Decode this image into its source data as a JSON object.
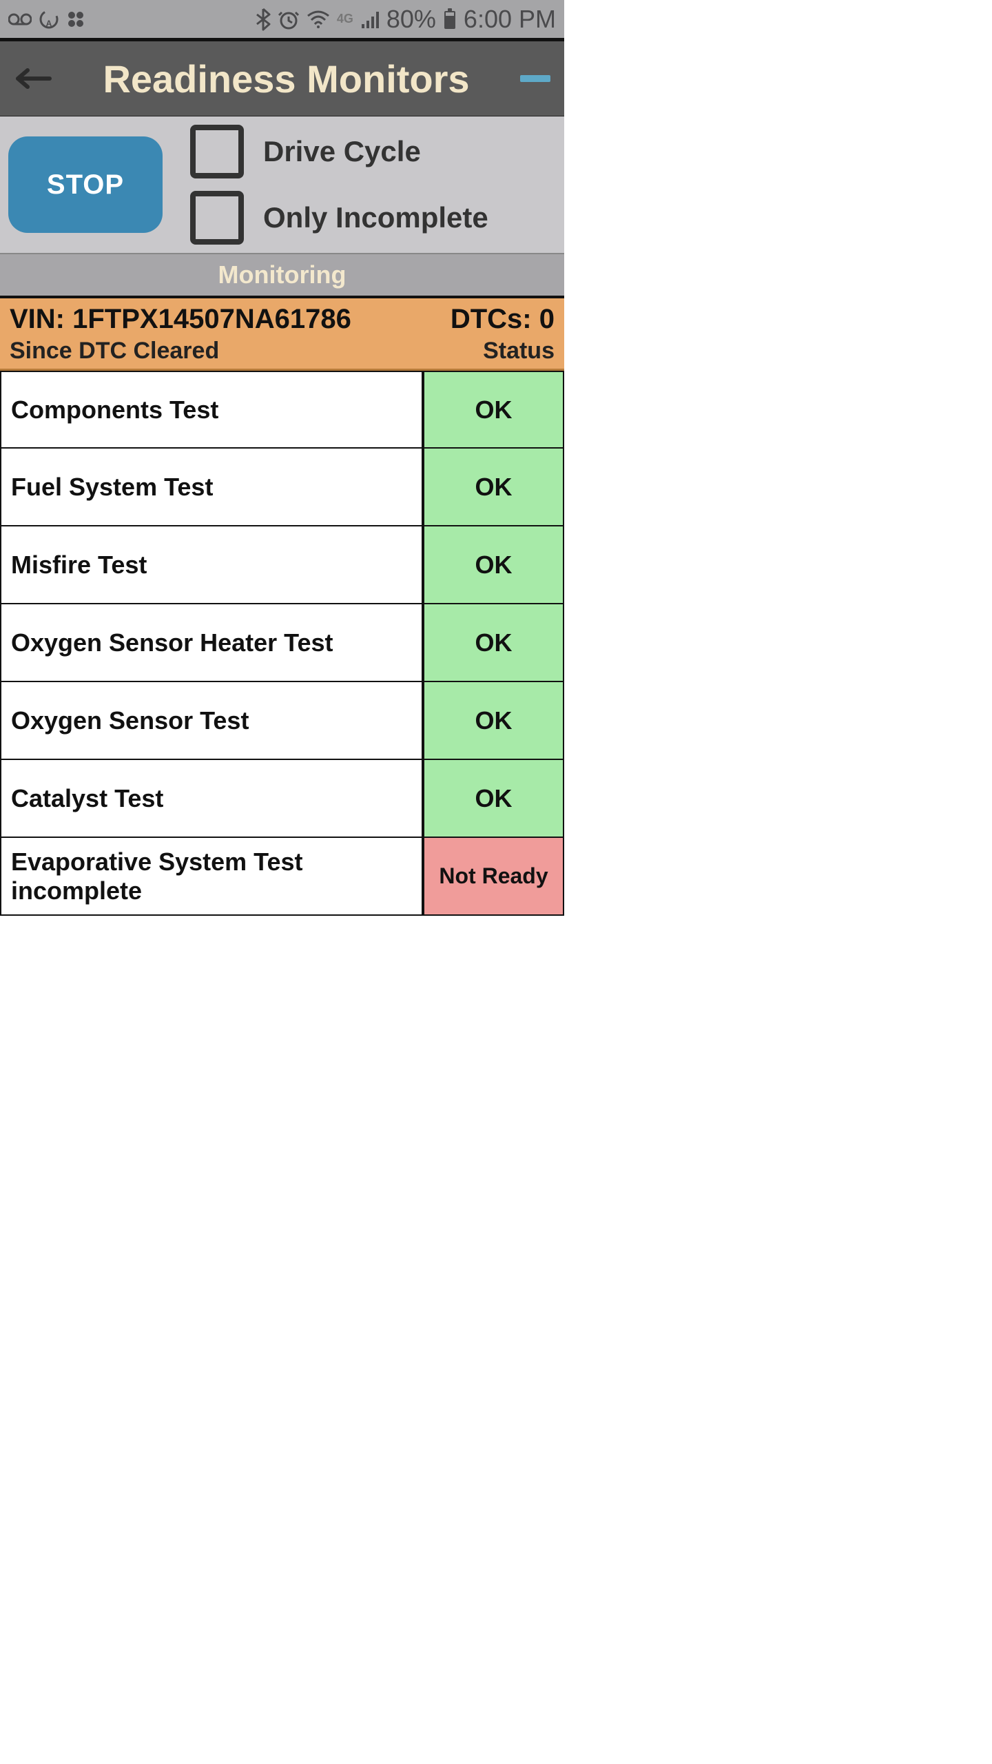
{
  "status_bar": {
    "battery_pct": "80%",
    "clock": "6:00 PM"
  },
  "header": {
    "title": "Readiness Monitors"
  },
  "controls": {
    "stop_label": "STOP",
    "drive_cycle_label": "Drive Cycle",
    "only_incomplete_label": "Only Incomplete",
    "drive_cycle_checked": false,
    "only_incomplete_checked": false
  },
  "monitoring": {
    "label": "Monitoring"
  },
  "info": {
    "vin_label": "VIN:",
    "vin_value": "1FTPX14507NA61786",
    "dtc_label": "DTCs:",
    "dtc_value": "0",
    "since_label": "Since DTC Cleared",
    "status_header": "Status"
  },
  "colors": {
    "ok_bg": "#a7eaa8",
    "not_ready_bg": "#f09c9a",
    "info_bg": "#e9a869",
    "header_bg": "#5a5a5a",
    "controls_bg": "#c9c8cb",
    "status_bar_bg": "#a5a5a7",
    "stop_btn_bg": "#3b88b3",
    "title_color": "#f2e6c8"
  },
  "tests": [
    {
      "name": "Components Test",
      "status": "OK",
      "status_bg": "#a7eaa8"
    },
    {
      "name": "Fuel System Test",
      "status": "OK",
      "status_bg": "#a7eaa8"
    },
    {
      "name": "Misfire Test",
      "status": "OK",
      "status_bg": "#a7eaa8"
    },
    {
      "name": "Oxygen Sensor Heater Test",
      "status": "OK",
      "status_bg": "#a7eaa8"
    },
    {
      "name": "Oxygen Sensor Test",
      "status": "OK",
      "status_bg": "#a7eaa8"
    },
    {
      "name": "Catalyst Test",
      "status": "OK",
      "status_bg": "#a7eaa8"
    },
    {
      "name": "Evaporative System Test incomplete",
      "status": "Not Ready",
      "status_bg": "#f09c9a"
    }
  ]
}
